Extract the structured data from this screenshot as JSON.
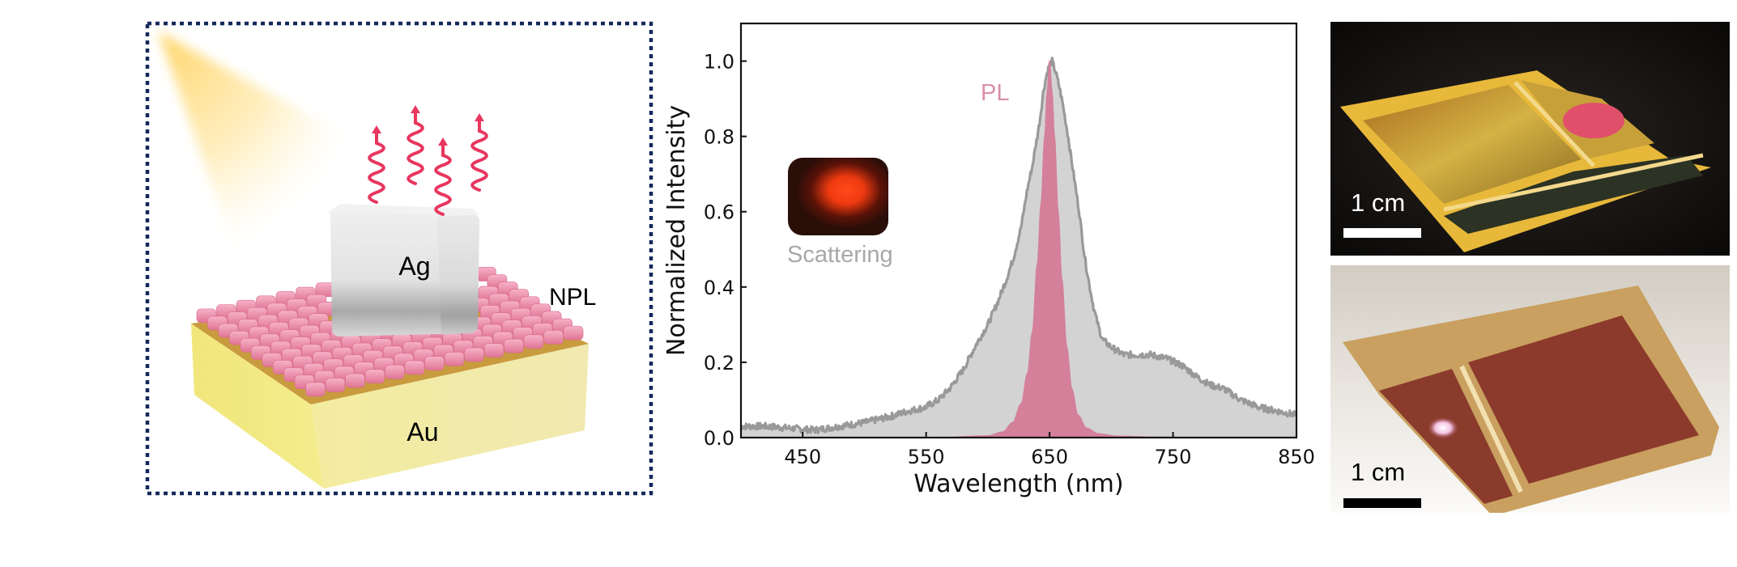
{
  "schematic": {
    "labels": {
      "cube": "Ag",
      "layer": "NPL",
      "substrate": "Au"
    },
    "colors": {
      "frame": "#14285a",
      "light": "#ffd66b",
      "emission": "#e8365f",
      "npl": "#ec8aa8",
      "gold": "#f2e69a",
      "silver": "#dcdcdc"
    },
    "emission_arrows": 4
  },
  "photos": {
    "top": {
      "scale_label": "1 cm",
      "scale_color": "#ffffff"
    },
    "bottom": {
      "scale_label": "1 cm",
      "scale_color": "#000000"
    }
  },
  "chart_data": {
    "type": "area",
    "title": "",
    "xlabel": "Wavelength (nm)",
    "ylabel": "Normalized Intensity",
    "xlim": [
      400,
      850
    ],
    "ylim": [
      0,
      1.1
    ],
    "xticks": [
      450,
      550,
      650,
      750,
      850
    ],
    "yticks": [
      0.0,
      0.2,
      0.4,
      0.6,
      0.8,
      1.0
    ],
    "ytick_labels": [
      "0.0",
      "0.2",
      "0.4",
      "0.6",
      "0.8",
      "1.0"
    ],
    "grid": false,
    "annotations": [
      {
        "text": "PL",
        "color": "#d98fab"
      },
      {
        "text": "Scattering",
        "color": "#a8a8a8"
      }
    ],
    "inset": {
      "description": "dark-field scattering image, red spot",
      "spot_color": "#ff3c14"
    },
    "series": [
      {
        "name": "Scattering",
        "fill": "#d3d3d3",
        "line": "#999999",
        "x": [
          400,
          420,
          440,
          460,
          480,
          500,
          520,
          535,
          549,
          560,
          569,
          580,
          591,
          600,
          608,
          615,
          621,
          627,
          632,
          636,
          639,
          642,
          645,
          648,
          650,
          652,
          655,
          658,
          661,
          665,
          669,
          674,
          678,
          682,
          686,
          690,
          693,
          700,
          710,
          720,
          732,
          745,
          758,
          770,
          780,
          791,
          805,
          820,
          835,
          850
        ],
        "y": [
          0.03,
          0.03,
          0.025,
          0.02,
          0.03,
          0.04,
          0.055,
          0.07,
          0.08,
          0.1,
          0.13,
          0.18,
          0.25,
          0.3,
          0.36,
          0.42,
          0.48,
          0.56,
          0.66,
          0.72,
          0.78,
          0.84,
          0.92,
          0.97,
          0.99,
          1.0,
          0.97,
          0.93,
          0.88,
          0.8,
          0.71,
          0.6,
          0.49,
          0.41,
          0.34,
          0.29,
          0.26,
          0.24,
          0.22,
          0.22,
          0.22,
          0.21,
          0.19,
          0.16,
          0.14,
          0.13,
          0.1,
          0.08,
          0.07,
          0.06
        ]
      },
      {
        "name": "PL",
        "fill": "#d4809b",
        "line": "#d4809b",
        "x": [
          400,
          560,
          600,
          612,
          620,
          627,
          632,
          636,
          640,
          643,
          646,
          648,
          650,
          652,
          654,
          657,
          660,
          664,
          668,
          673,
          680,
          690,
          705,
          740,
          850
        ],
        "y": [
          0,
          0,
          0.005,
          0.015,
          0.04,
          0.09,
          0.17,
          0.28,
          0.46,
          0.62,
          0.8,
          0.92,
          1.0,
          0.92,
          0.8,
          0.6,
          0.42,
          0.24,
          0.13,
          0.06,
          0.025,
          0.01,
          0.004,
          0.001,
          0
        ]
      }
    ]
  }
}
